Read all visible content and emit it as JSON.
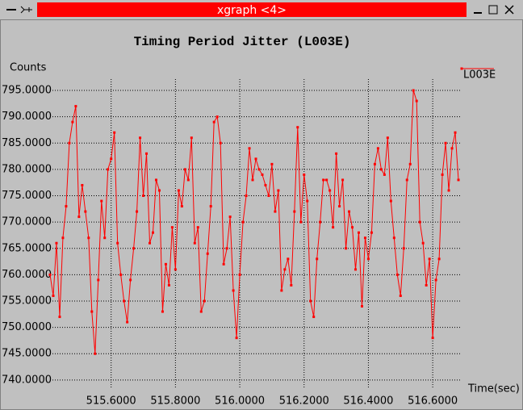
{
  "window": {
    "title": "xgraph <4>"
  },
  "chart_data": {
    "type": "line",
    "title": "Timing Period Jitter (L003E)",
    "y_label": "Counts",
    "x_label": "Time(sec)",
    "xlim": [
      515.41,
      516.685
    ],
    "ylim": [
      738.6,
      797.15
    ],
    "xticks": [
      {
        "value": 515.6,
        "label": "515.6000"
      },
      {
        "value": 515.8,
        "label": "515.8000"
      },
      {
        "value": 516.0,
        "label": "516.0000"
      },
      {
        "value": 516.2,
        "label": "516.2000"
      },
      {
        "value": 516.4,
        "label": "516.4000"
      },
      {
        "value": 516.6,
        "label": "516.6000"
      }
    ],
    "yticks": [
      {
        "value": 740,
        "label": "740.0000"
      },
      {
        "value": 745,
        "label": "745.0000"
      },
      {
        "value": 750,
        "label": "750.0000"
      },
      {
        "value": 755,
        "label": "755.0000"
      },
      {
        "value": 760,
        "label": "760.0000"
      },
      {
        "value": 765,
        "label": "765.0000"
      },
      {
        "value": 770,
        "label": "770.0000"
      },
      {
        "value": 775,
        "label": "775.0000"
      },
      {
        "value": 780,
        "label": "780.0000"
      },
      {
        "value": 785,
        "label": "785.0000"
      },
      {
        "value": 790,
        "label": "790.0000"
      },
      {
        "value": 795,
        "label": "795.0000"
      }
    ],
    "grid": true,
    "legend": "top-right",
    "x": [
      515.41,
      515.42,
      515.43,
      515.44,
      515.45,
      515.46,
      515.47,
      515.48,
      515.49,
      515.5,
      515.51,
      515.52,
      515.53,
      515.54,
      515.55,
      515.56,
      515.57,
      515.58,
      515.59,
      515.6,
      515.61,
      515.62,
      515.63,
      515.64,
      515.65,
      515.66,
      515.67,
      515.68,
      515.69,
      515.7,
      515.71,
      515.72,
      515.73,
      515.74,
      515.75,
      515.76,
      515.77,
      515.78,
      515.79,
      515.8,
      515.81,
      515.82,
      515.83,
      515.84,
      515.85,
      515.86,
      515.87,
      515.88,
      515.89,
      515.9,
      515.91,
      515.92,
      515.93,
      515.94,
      515.95,
      515.96,
      515.97,
      515.98,
      515.99,
      516.0,
      516.01,
      516.02,
      516.03,
      516.04,
      516.05,
      516.06,
      516.07,
      516.08,
      516.09,
      516.1,
      516.11,
      516.12,
      516.13,
      516.14,
      516.15,
      516.16,
      516.17,
      516.18,
      516.19,
      516.2,
      516.21,
      516.22,
      516.23,
      516.24,
      516.25,
      516.26,
      516.27,
      516.28,
      516.29,
      516.3,
      516.31,
      516.32,
      516.33,
      516.34,
      516.35,
      516.36,
      516.37,
      516.38,
      516.39,
      516.4,
      516.41,
      516.42,
      516.43,
      516.44,
      516.45,
      516.46,
      516.47,
      516.48,
      516.49,
      516.5,
      516.51,
      516.52,
      516.53,
      516.54,
      516.55,
      516.56,
      516.57,
      516.58,
      516.59,
      516.6,
      516.61,
      516.62,
      516.63,
      516.64,
      516.65,
      516.66,
      516.67,
      516.68
    ],
    "series": [
      {
        "name": "L003E",
        "color": "#ff0000",
        "values": [
          760,
          756,
          766,
          752,
          767,
          773,
          785,
          789,
          792,
          771,
          777,
          772,
          767,
          753,
          745,
          759,
          774,
          767,
          780,
          782,
          787,
          766,
          760,
          755,
          751,
          759,
          765,
          772,
          786,
          775,
          783,
          766,
          768,
          778,
          776,
          753,
          762,
          758,
          769,
          761,
          776,
          773,
          780,
          778,
          786,
          766,
          769,
          753,
          755,
          764,
          773,
          789,
          790,
          785,
          762,
          765,
          771,
          757,
          748,
          760,
          770,
          775,
          784,
          778,
          782,
          780,
          779,
          777,
          775,
          781,
          772,
          776,
          757,
          761,
          763,
          758,
          772,
          788,
          770,
          779,
          774,
          755,
          752,
          763,
          770,
          778,
          778,
          776,
          769,
          783,
          773,
          778,
          765,
          772,
          769,
          761,
          768,
          754,
          767,
          763,
          768,
          781,
          784,
          780,
          779,
          786,
          774,
          767,
          760,
          756,
          765,
          778,
          781,
          795,
          793,
          770,
          766,
          758,
          763,
          748,
          759,
          763,
          779,
          785,
          776,
          784,
          787,
          778
        ]
      }
    ]
  }
}
